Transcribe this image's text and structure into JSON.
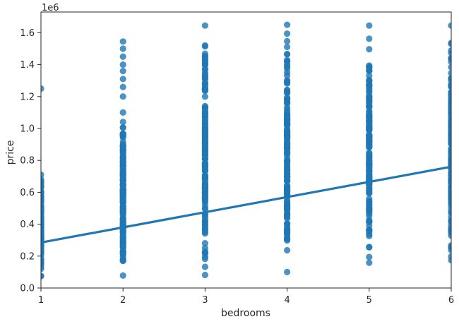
{
  "chart_data": {
    "type": "scatter",
    "title": "",
    "xlabel": "bedrooms",
    "ylabel": "price",
    "y_offset_label": "1e6",
    "xlim": [
      1,
      6
    ],
    "ylim": [
      0,
      1730000
    ],
    "x_ticks": [
      1,
      2,
      3,
      4,
      5,
      6
    ],
    "y_ticks": [
      0,
      200000,
      400000,
      600000,
      800000,
      1000000,
      1200000,
      1400000,
      1600000
    ],
    "y_tick_labels": [
      "0.0",
      "0.2",
      "0.4",
      "0.6",
      "0.8",
      "1.0",
      "1.2",
      "1.4",
      "1.6"
    ],
    "grid": false,
    "colors": {
      "points": "#1f77b4",
      "line": "#1f77b4"
    },
    "series": [
      {
        "x": 1,
        "min": 75000,
        "max": 710000,
        "outliers": [
          1250000
        ]
      },
      {
        "x": 2,
        "min": 78000,
        "max": 1100000,
        "outliers": [
          1200000,
          1260000,
          1310000,
          1360000,
          1400000,
          1450000,
          1500000,
          1545000
        ]
      },
      {
        "x": 3,
        "min": 82000,
        "max": 1645000,
        "outliers": []
      },
      {
        "x": 4,
        "min": 100000,
        "max": 1650000,
        "outliers": []
      },
      {
        "x": 5,
        "min": 158000,
        "max": 1645000,
        "outliers": []
      },
      {
        "x": 6,
        "min": 175000,
        "max": 1645000,
        "outliers": []
      }
    ],
    "regression_line": {
      "x": [
        1,
        6
      ],
      "y": [
        285000,
        760000
      ]
    }
  }
}
